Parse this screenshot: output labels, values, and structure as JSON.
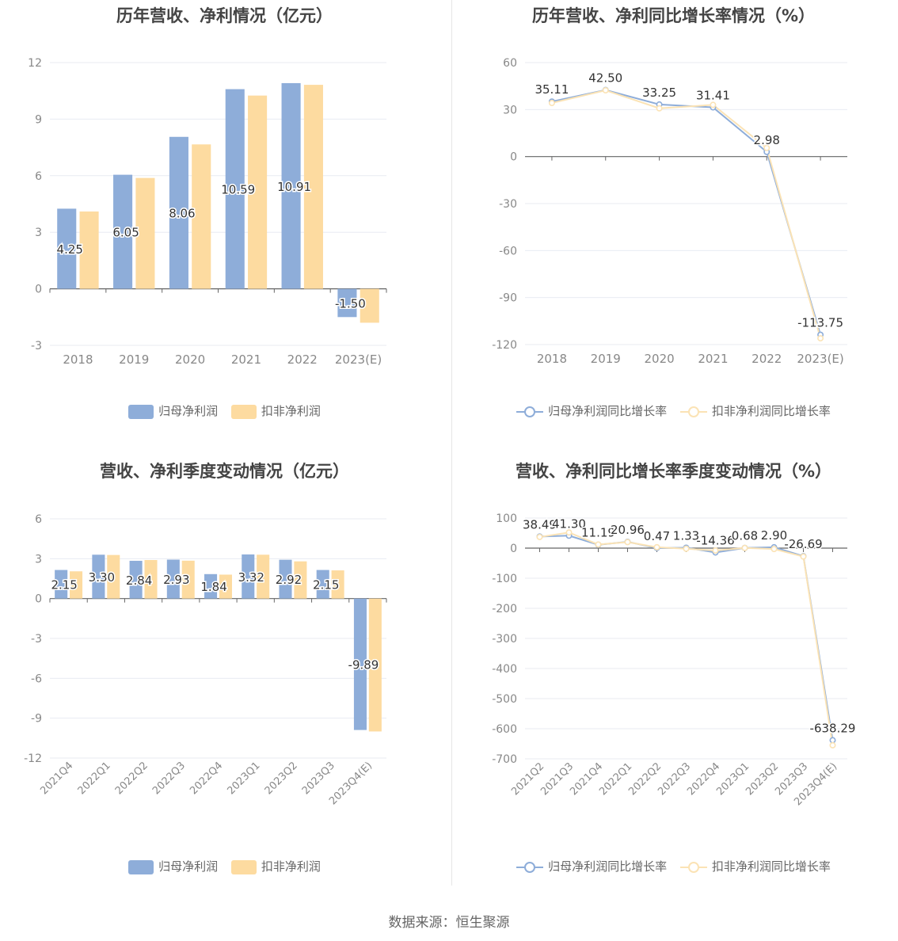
{
  "colors": {
    "blue": "#8eadd9",
    "yellow": "#fddba0",
    "blue_line": "#8eadd9",
    "yellow_line": "#fbe3b5"
  },
  "footer": {
    "source": "数据来源：恒生聚源"
  },
  "chart_data": [
    {
      "id": "annual_profit",
      "type": "bar",
      "title": "历年营收、净利情况（亿元）",
      "categories": [
        "2018",
        "2019",
        "2020",
        "2021",
        "2022",
        "2023(E)"
      ],
      "series": [
        {
          "name": "归母净利润",
          "values": [
            4.25,
            6.05,
            8.06,
            10.59,
            10.91,
            -1.5
          ]
        },
        {
          "name": "扣非净利润",
          "values": [
            4.1,
            5.88,
            7.66,
            10.25,
            10.82,
            -1.8
          ]
        }
      ],
      "data_labels": [
        "4.25",
        "6.05",
        "8.06",
        "10.59",
        "10.91",
        "-1.50"
      ],
      "yticks": [
        "12",
        "9",
        "6",
        "3",
        "0",
        "-3"
      ],
      "ylim": [
        -3,
        12
      ],
      "legend": "bottom"
    },
    {
      "id": "annual_growth",
      "type": "line",
      "title": "历年营收、净利同比增长率情况（%）",
      "categories": [
        "2018",
        "2019",
        "2020",
        "2021",
        "2022",
        "2023(E)"
      ],
      "series": [
        {
          "name": "归母净利润同比增长率",
          "values": [
            35.11,
            42.5,
            33.25,
            31.41,
            2.98,
            -113.75
          ]
        },
        {
          "name": "扣非净利润同比增长率",
          "values": [
            34.2,
            42.3,
            30.8,
            33.0,
            5.5,
            -116.0
          ]
        }
      ],
      "data_labels": [
        "35.11",
        "42.50",
        "33.25",
        "31.41",
        "2.98",
        "-113.75"
      ],
      "yticks": [
        "60",
        "30",
        "0",
        "-30",
        "-60",
        "-90",
        "-120"
      ],
      "ylim": [
        -120,
        60
      ],
      "legend": "bottom"
    },
    {
      "id": "quarterly_profit",
      "type": "bar",
      "title": "营收、净利季度变动情况（亿元）",
      "categories": [
        "2021Q4",
        "2022Q1",
        "2022Q2",
        "2022Q3",
        "2022Q4",
        "2023Q1",
        "2023Q2",
        "2023Q3",
        "2023Q4(E)"
      ],
      "series": [
        {
          "name": "归母净利润",
          "values": [
            2.15,
            3.3,
            2.84,
            2.93,
            1.84,
            3.32,
            2.92,
            2.15,
            -9.89
          ]
        },
        {
          "name": "扣非净利润",
          "values": [
            2.05,
            3.28,
            2.9,
            2.85,
            1.8,
            3.3,
            2.8,
            2.12,
            -10.0
          ]
        }
      ],
      "data_labels": [
        "2.15",
        "3.30",
        "2.84",
        "2.93",
        "1.84",
        "3.32",
        "2.92",
        "2.15",
        "-9.89"
      ],
      "yticks": [
        "6",
        "3",
        "0",
        "-3",
        "-6",
        "-9",
        "-12"
      ],
      "ylim": [
        -12,
        6
      ],
      "legend": "bottom"
    },
    {
      "id": "quarterly_growth",
      "type": "line",
      "title": "营收、净利同比增长率季度变动情况（%）",
      "categories": [
        "2021Q2",
        "2021Q3",
        "2021Q4",
        "2022Q1",
        "2022Q2",
        "2022Q3",
        "2022Q4",
        "2023Q1",
        "2023Q2",
        "2023Q3",
        "2023Q4(E)"
      ],
      "series": [
        {
          "name": "归母净利润同比增长率",
          "values": [
            38.49,
            41.3,
            11.19,
            20.96,
            0.47,
            1.33,
            -14.36,
            0.68,
            2.9,
            -26.69,
            -638.29
          ]
        },
        {
          "name": "扣非净利润同比增长率",
          "values": [
            37.0,
            52.0,
            12.0,
            20.0,
            3.0,
            -2.0,
            -8.0,
            0.5,
            -3.0,
            -28.0,
            -655.0
          ]
        }
      ],
      "data_labels": [
        "38.49",
        "41.30",
        "11.19",
        "20.96",
        "0.47",
        "1.33",
        "-14.36",
        "0.68",
        "2.90",
        "-26.69",
        "-638.29"
      ],
      "yticks": [
        "100",
        "0",
        "-100",
        "-200",
        "-300",
        "-400",
        "-500",
        "-600",
        "-700"
      ],
      "ylim": [
        -700,
        100
      ],
      "legend": "bottom"
    }
  ]
}
